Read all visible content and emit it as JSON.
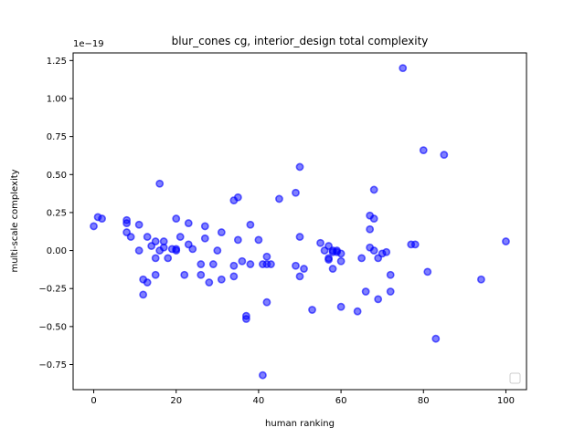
{
  "chart_data": {
    "type": "scatter",
    "title": "blur_cones cg, interior_design total complexity",
    "xlabel": "human ranking",
    "ylabel": "multi-scale complexity",
    "y_offset_label": "1e−19",
    "xlim": [
      -5,
      105
    ],
    "ylim": [
      -0.915,
      1.3
    ],
    "xticks": [
      0,
      20,
      40,
      60,
      80,
      100
    ],
    "yticks": [
      -0.75,
      -0.5,
      -0.25,
      0.0,
      0.25,
      0.5,
      0.75,
      1.0,
      1.25
    ],
    "ytick_labels": [
      "−0.75",
      "−0.50",
      "−0.25",
      "0.00",
      "0.25",
      "0.50",
      "0.75",
      "1.00",
      "1.25"
    ],
    "grid": false,
    "legend": "lower-right (empty)",
    "marker_color": "#0000ff",
    "x": [
      0,
      1,
      2,
      8,
      8,
      8,
      9,
      11,
      11,
      12,
      12,
      13,
      13,
      14,
      15,
      15,
      15,
      16,
      16,
      17,
      17,
      18,
      19,
      20,
      20,
      20,
      21,
      22,
      23,
      23,
      24,
      26,
      26,
      27,
      27,
      28,
      29,
      30,
      31,
      31,
      34,
      34,
      34,
      35,
      35,
      36,
      37,
      37,
      38,
      38,
      40,
      41,
      41,
      42,
      42,
      42,
      43,
      45,
      49,
      49,
      50,
      50,
      50,
      51,
      53,
      55,
      56,
      57,
      57,
      57,
      58,
      58,
      58,
      59,
      59,
      60,
      60,
      60,
      64,
      65,
      66,
      67,
      67,
      67,
      68,
      68,
      68,
      69,
      69,
      70,
      71,
      72,
      72,
      75,
      77,
      78,
      80,
      81,
      83,
      85,
      94,
      100
    ],
    "y": [
      0.16,
      0.22,
      0.21,
      0.2,
      0.18,
      0.12,
      0.09,
      0.17,
      0.0,
      -0.19,
      -0.29,
      0.09,
      -0.21,
      0.03,
      0.06,
      -0.05,
      -0.16,
      0.44,
      0.0,
      0.02,
      0.06,
      -0.05,
      0.01,
      0.21,
      0.01,
      0.0,
      0.09,
      -0.16,
      0.18,
      0.04,
      0.01,
      -0.09,
      -0.16,
      0.16,
      0.08,
      -0.21,
      -0.09,
      0.0,
      0.12,
      -0.19,
      0.33,
      -0.1,
      -0.17,
      0.35,
      0.07,
      -0.07,
      -0.43,
      -0.45,
      0.17,
      -0.09,
      0.07,
      -0.09,
      -0.82,
      -0.04,
      -0.34,
      -0.09,
      -0.09,
      0.34,
      0.38,
      -0.1,
      0.55,
      0.09,
      -0.17,
      -0.12,
      -0.39,
      0.05,
      0.0,
      0.03,
      -0.05,
      -0.06,
      0.0,
      -0.01,
      -0.12,
      0.0,
      -0.01,
      -0.07,
      -0.37,
      -0.02,
      -0.4,
      -0.05,
      -0.27,
      0.23,
      0.02,
      0.14,
      0.4,
      0.21,
      0.0,
      -0.05,
      -0.32,
      -0.02,
      -0.01,
      -0.16,
      -0.27,
      1.2,
      0.04,
      0.04,
      0.66,
      -0.14,
      -0.58,
      0.63,
      -0.19,
      0.06
    ]
  }
}
